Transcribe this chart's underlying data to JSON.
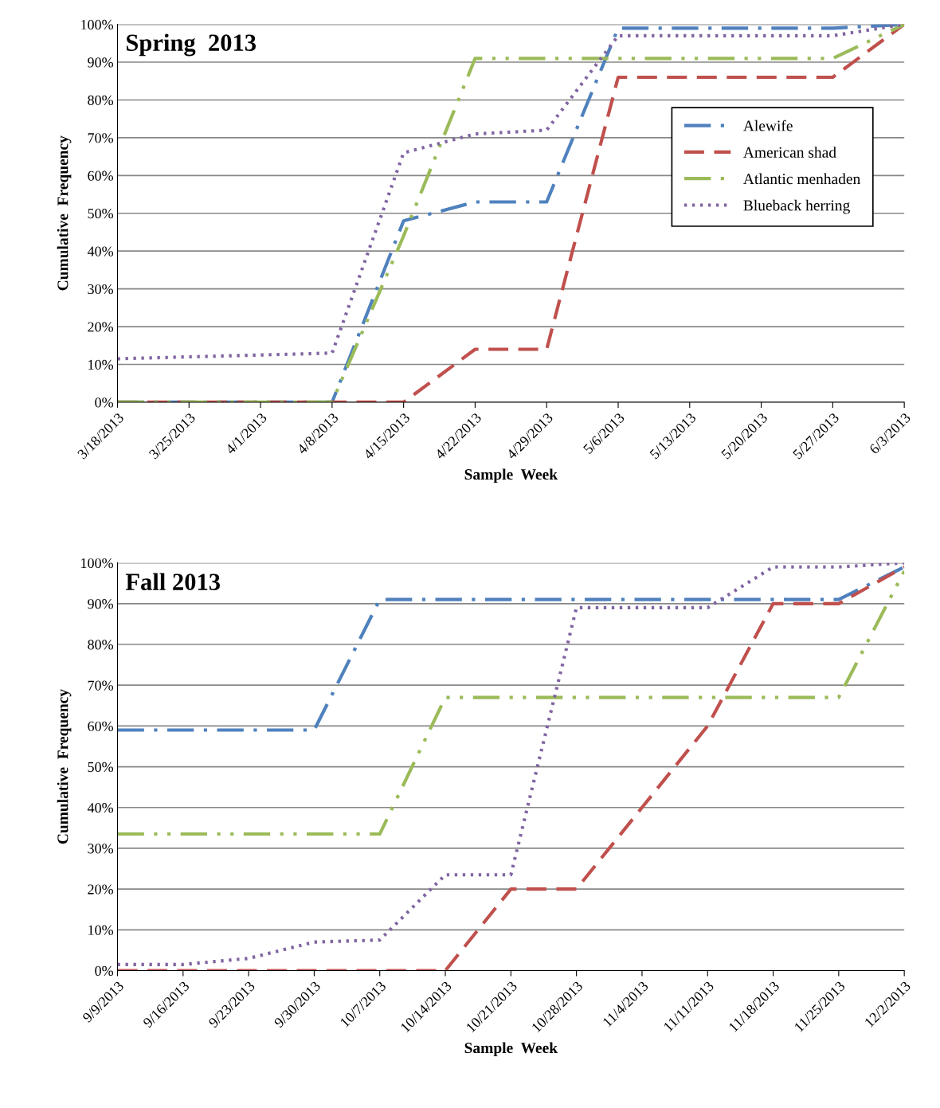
{
  "chart_data": [
    {
      "type": "line",
      "title": "Spring  2013",
      "xlabel": "Sample  Week",
      "ylabel": "Cumulative  Frequency",
      "categories": [
        "3/18/2013",
        "3/25/2013",
        "4/1/2013",
        "4/8/2013",
        "4/15/2013",
        "4/22/2013",
        "4/29/2013",
        "5/6/2013",
        "5/13/2013",
        "5/20/2013",
        "5/27/2013",
        "6/3/2013"
      ],
      "series": [
        {
          "name": "Alewife",
          "color": "#4f81bd",
          "line_style": "dashdot",
          "values": [
            0,
            0,
            0,
            0,
            48,
            53,
            53,
            99,
            99,
            99,
            99,
            100
          ]
        },
        {
          "name": "American shad",
          "color": "#c0504d",
          "line_style": "dashed",
          "values": [
            0,
            0,
            0,
            0,
            0,
            14,
            14,
            86,
            86,
            86,
            86,
            100
          ]
        },
        {
          "name": "Atlantic menhaden",
          "color": "#9bbb59",
          "line_style": "dashdotdot",
          "values": [
            0,
            0,
            0,
            0,
            44,
            91,
            91,
            91,
            91,
            91,
            91,
            100
          ]
        },
        {
          "name": "Blueback herring",
          "color": "#8064a2",
          "line_style": "dotted",
          "values": [
            11.5,
            12,
            12.5,
            13,
            66,
            71,
            72,
            97,
            97,
            97,
            97,
            100
          ]
        }
      ],
      "ylim": [
        0,
        100
      ],
      "yticks": [
        {
          "value": 0,
          "label": "0%"
        },
        {
          "value": 10,
          "label": "10%"
        },
        {
          "value": 20,
          "label": "20%"
        },
        {
          "value": 30,
          "label": "30%"
        },
        {
          "value": 40,
          "label": "40%"
        },
        {
          "value": 50,
          "label": "50%"
        },
        {
          "value": 60,
          "label": "60%"
        },
        {
          "value": 70,
          "label": "70%"
        },
        {
          "value": 80,
          "label": "80%"
        },
        {
          "value": 90,
          "label": "90%"
        },
        {
          "value": 100,
          "label": "100%"
        }
      ],
      "grid": "y",
      "legend": "top right"
    },
    {
      "type": "line",
      "title": "Fall 2013",
      "xlabel": "Sample  Week",
      "ylabel": "Cumulative  Frequency",
      "categories": [
        "9/9/2013",
        "9/16/2013",
        "9/23/2013",
        "9/30/2013",
        "10/7/2013",
        "10/14/2013",
        "10/21/2013",
        "10/28/2013",
        "11/4/2013",
        "11/11/2013",
        "11/18/2013",
        "11/25/2013",
        "12/2/2013"
      ],
      "series": [
        {
          "color": "#4f81bd",
          "line_style": "dashdot",
          "values": [
            59,
            59,
            59,
            59,
            91,
            91,
            91,
            91,
            91,
            91,
            91,
            91,
            99
          ]
        },
        {
          "color": "#c0504d",
          "line_style": "dashed",
          "values": [
            0,
            0,
            0,
            0,
            0,
            0,
            20,
            20,
            40,
            60,
            90,
            90,
            99
          ]
        },
        {
          "color": "#9bbb59",
          "line_style": "dashdotdot",
          "values": [
            33.5,
            33.5,
            33.5,
            33.5,
            33.5,
            67,
            67,
            67,
            67,
            67,
            67,
            67,
            98
          ]
        },
        {
          "color": "#8064a2",
          "line_style": "dotted",
          "values": [
            1.5,
            1.5,
            3,
            7,
            7.5,
            23.5,
            23.5,
            89,
            89,
            89,
            99,
            99,
            100
          ]
        }
      ],
      "ylim": [
        0,
        100
      ],
      "yticks": [
        {
          "value": 0,
          "label": "0%"
        },
        {
          "value": 10,
          "label": "10%"
        },
        {
          "value": 20,
          "label": "20%"
        },
        {
          "value": 30,
          "label": "30%"
        },
        {
          "value": 40,
          "label": "40%"
        },
        {
          "value": 50,
          "label": "50%"
        },
        {
          "value": 60,
          "label": "60%"
        },
        {
          "value": 70,
          "label": "70%"
        },
        {
          "value": 80,
          "label": "80%"
        },
        {
          "value": 90,
          "label": "90%"
        },
        {
          "value": 100,
          "label": "100%"
        }
      ],
      "grid": "y"
    }
  ]
}
